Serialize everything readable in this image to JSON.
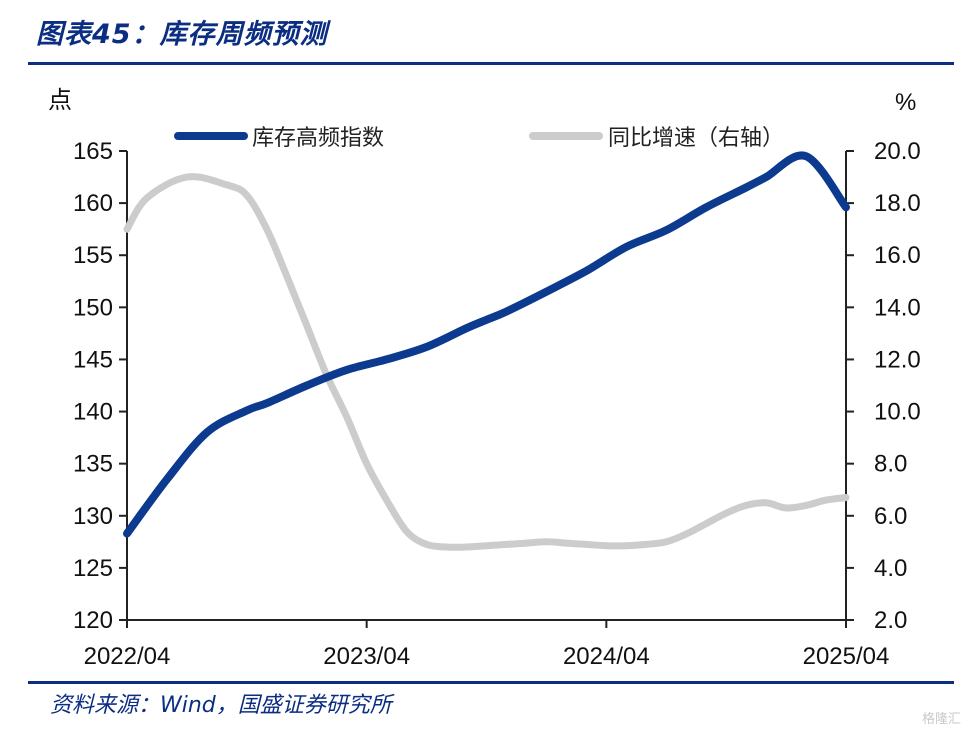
{
  "header": {
    "title": "图表45：库存周频预测"
  },
  "footer": {
    "source": "资料来源：Wind，国盛证券研究所",
    "watermark": "格隆汇"
  },
  "colors": {
    "brand": "#0b2e83",
    "series_index": "#0b3a8f",
    "series_yoy": "#cccccc"
  },
  "chart_data": {
    "type": "line",
    "title": "库存周频预测",
    "ylabel": "点",
    "y2label": "%",
    "ylim": [
      120,
      165
    ],
    "y2lim": [
      2.0,
      20.0
    ],
    "yticks": [
      "165",
      "160",
      "155",
      "150",
      "145",
      "140",
      "135",
      "130",
      "125",
      "120"
    ],
    "y2ticks": [
      "20.0",
      "18.0",
      "16.0",
      "14.0",
      "12.0",
      "10.0",
      "8.0",
      "6.0",
      "4.0",
      "2.0"
    ],
    "xlim": [
      0,
      36
    ],
    "xticks": [
      {
        "label": "2022/04",
        "month": 0
      },
      {
        "label": "2023/04",
        "month": 12
      },
      {
        "label": "2024/04",
        "month": 24
      },
      {
        "label": "2025/04",
        "month": 36
      }
    ],
    "legend_position": "top",
    "series": [
      {
        "name": "库存高频指数",
        "axis": "left",
        "x": [
          0,
          2,
          4,
          6,
          7,
          9,
          11,
          13,
          15,
          17,
          18,
          19,
          21,
          23,
          25,
          27,
          29,
          31,
          32,
          34,
          36
        ],
        "values": [
          128.3,
          133.5,
          138.0,
          140.1,
          140.8,
          142.5,
          144.0,
          145.0,
          146.2,
          148.0,
          148.8,
          149.6,
          151.5,
          153.5,
          155.8,
          157.4,
          159.6,
          161.5,
          162.5,
          164.5,
          159.6
        ]
      },
      {
        "name": "同比增速（右轴）",
        "axis": "right",
        "x": [
          0,
          1,
          3,
          5,
          6,
          7,
          8,
          9,
          10,
          11,
          12,
          13,
          14,
          15,
          16,
          17,
          18,
          19,
          20,
          21,
          22,
          23,
          24,
          25,
          26,
          27,
          28,
          29,
          30,
          31,
          32,
          33,
          34,
          35,
          36
        ],
        "values": [
          17.0,
          18.2,
          19.0,
          18.7,
          18.3,
          17.0,
          15.2,
          13.3,
          11.4,
          9.8,
          8.0,
          6.6,
          5.4,
          4.9,
          4.8,
          4.8,
          4.85,
          4.9,
          4.95,
          5.0,
          4.95,
          4.9,
          4.85,
          4.85,
          4.9,
          5.0,
          5.3,
          5.7,
          6.1,
          6.4,
          6.5,
          6.3,
          6.4,
          6.6,
          6.7
        ]
      }
    ]
  }
}
